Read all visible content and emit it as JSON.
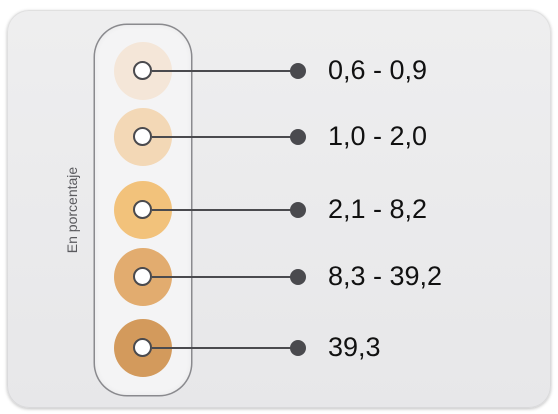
{
  "legend": {
    "axis_label": "En porcentaje",
    "items": [
      {
        "label": "0,6 - 0,9",
        "color": "#f4e6d8"
      },
      {
        "label": "1,0 - 2,0",
        "color": "#f3d8b6"
      },
      {
        "label": "2,1 - 8,2",
        "color": "#f2c27b"
      },
      {
        "label": "8,3 - 39,2",
        "color": "#e2ac6f"
      },
      {
        "label": "39,3",
        "color": "#d39a5c"
      }
    ]
  }
}
